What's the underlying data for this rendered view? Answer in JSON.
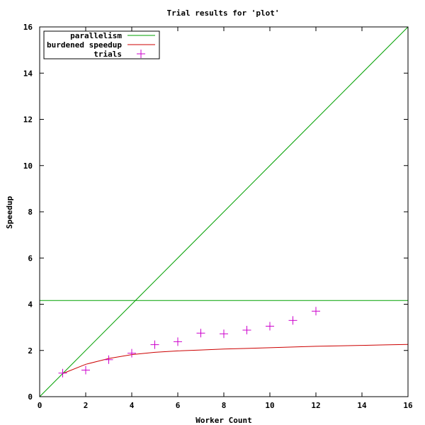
{
  "chart_data": {
    "type": "line",
    "title": "Trial results for 'plot'",
    "xlabel": "Worker Count",
    "ylabel": "Speedup",
    "xlim": [
      0,
      16
    ],
    "ylim": [
      0,
      16
    ],
    "x_ticks": [
      "0",
      "2",
      "4",
      "6",
      "8",
      "10",
      "12",
      "14",
      "16"
    ],
    "y_ticks": [
      "0",
      "2",
      "4",
      "6",
      "8",
      "10",
      "12",
      "14",
      "16"
    ],
    "grid": false,
    "legend_position": "top-left",
    "series": [
      {
        "name": "parallelism",
        "kind": "line",
        "color": "#00a000",
        "points": [
          [
            0,
            0
          ],
          [
            4.16,
            4.16
          ],
          [
            16,
            16
          ]
        ],
        "horizontal_at": 4.16
      },
      {
        "name": "burdened speedup",
        "kind": "line",
        "color": "#cc0000",
        "x": [
          1,
          2,
          3,
          4,
          5,
          6,
          7,
          8,
          9,
          10,
          11,
          12,
          13,
          14,
          15,
          16
        ],
        "y": [
          1.0,
          1.4,
          1.65,
          1.82,
          1.92,
          1.98,
          2.02,
          2.06,
          2.09,
          2.12,
          2.15,
          2.18,
          2.2,
          2.22,
          2.24,
          2.26
        ]
      },
      {
        "name": "trials",
        "kind": "scatter",
        "marker": "+",
        "color": "#cc00cc",
        "x": [
          1,
          2,
          3,
          4,
          5,
          6,
          7,
          8,
          9,
          10,
          11,
          12
        ],
        "y": [
          1.02,
          1.15,
          1.6,
          1.88,
          2.25,
          2.38,
          2.75,
          2.72,
          2.88,
          3.05,
          3.3,
          3.7
        ]
      }
    ]
  }
}
